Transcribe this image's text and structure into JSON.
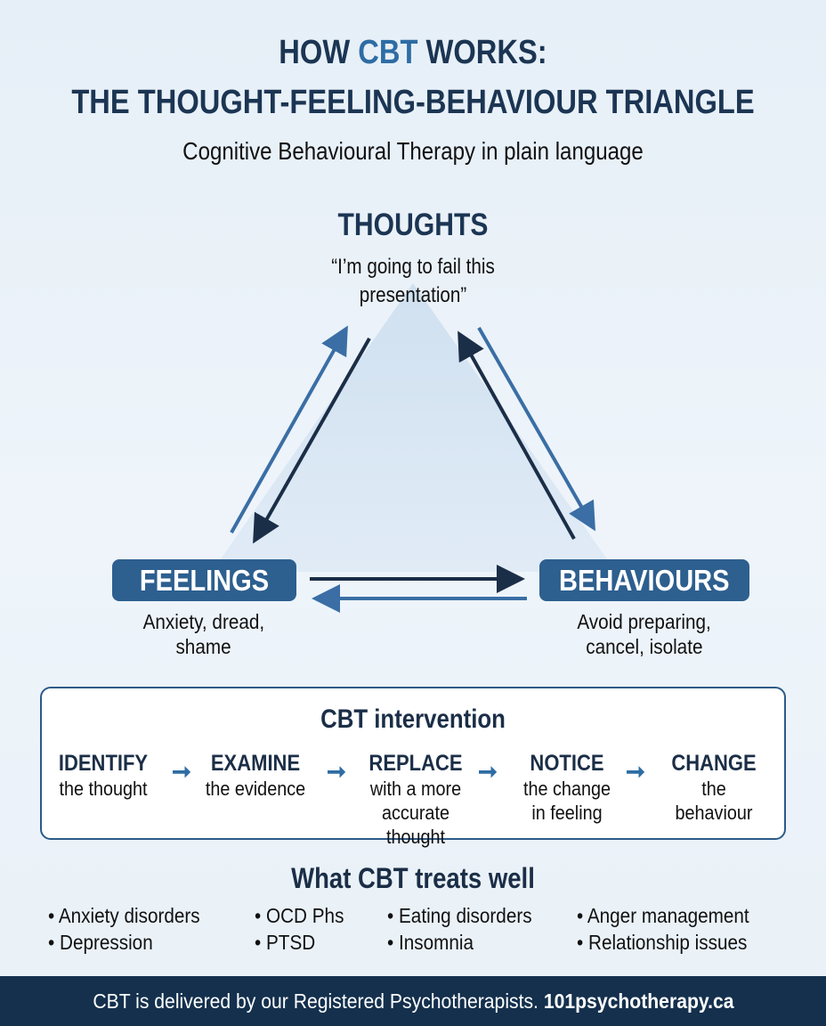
{
  "header": {
    "title_prefix": "HOW ",
    "title_accent": "CBT",
    "title_suffix": " WORKS:",
    "title_line2": "THE THOUGHT-FEELING-BEHAVIOUR TRIANGLE",
    "subtitle": "Cognitive Behavioural Therapy in plain language"
  },
  "triangle": {
    "thoughts": {
      "label": "THOUGHTS",
      "line1": "“I’m going to fail this",
      "line2": "presentation”"
    },
    "feelings": {
      "label": "FEELINGS",
      "line1": "Anxiety, dread,",
      "line2": "shame"
    },
    "behaviours": {
      "label": "BEHAVIOURS",
      "line1": "Avoid preparing,",
      "line2": "cancel, isolate"
    }
  },
  "intervention": {
    "title": "CBT intervention",
    "steps": [
      {
        "word": "IDENTIFY",
        "line1": "the thought",
        "line2": ""
      },
      {
        "word": "EXAMINE",
        "line1": "the evidence",
        "line2": ""
      },
      {
        "word": "REPLACE",
        "line1": "with a more",
        "line2": "accurate thought"
      },
      {
        "word": "NOTICE",
        "line1": "the change",
        "line2": "in feeling"
      },
      {
        "word": "CHANGE",
        "line1": "the",
        "line2": "behaviour"
      }
    ]
  },
  "treats": {
    "title": "What CBT treats well",
    "items": [
      "• Anxiety disorders",
      "• Depression",
      "• OCD Phs",
      "• PTSD",
      "• Eating disorders",
      "• Insomnia",
      "• Anger management",
      "• Relationship issues"
    ]
  },
  "footer": {
    "text": "CBT is delivered by our Registered Psychotherapists. ",
    "site": "101psychotherapy.ca"
  },
  "colors": {
    "navy": "#1b2e47",
    "accent": "#2e6da4",
    "pill": "#2d5f8f",
    "footer": "#14304d"
  }
}
